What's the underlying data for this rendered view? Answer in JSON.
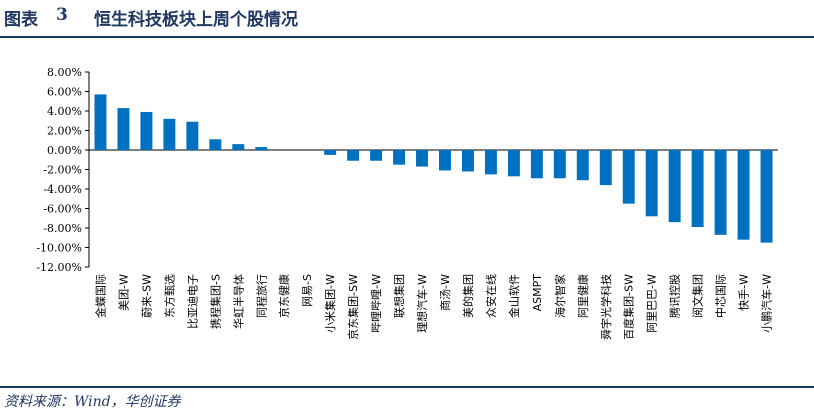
{
  "header": {
    "label": "图表",
    "number": "3",
    "title": "恒生科技板块上周个股情况"
  },
  "source": "资料来源：Wind，华创证券",
  "colors": {
    "bar": "#0070c0",
    "rule": "#1f3864",
    "axis": "#000000"
  },
  "chart_data": {
    "type": "bar",
    "title": "",
    "xlabel": "",
    "ylabel": "",
    "ylim": [
      -12,
      8
    ],
    "yticks": [
      8,
      6,
      4,
      2,
      0,
      -2,
      -4,
      -6,
      -8,
      -10,
      -12
    ],
    "ytick_labels": [
      "8.00%",
      "6.00%",
      "4.00%",
      "2.00%",
      "0.00%",
      "-2.00%",
      "-4.00%",
      "-6.00%",
      "-8.00%",
      "-10.00%",
      "-12.00%"
    ],
    "grid": false,
    "categories": [
      "金蝶国际",
      "美团-W",
      "蔚来-SW",
      "东方甄选",
      "比亚迪电子",
      "携程集团-S",
      "华虹半导体",
      "同程旅行",
      "京东健康",
      "网易-S",
      "小米集团-W",
      "京东集团-SW",
      "哔哩哔哩-W",
      "联想集团",
      "理想汽车-W",
      "商汤-W",
      "美的集团",
      "众安在线",
      "金山软件",
      "ASMPT",
      "海尔智家",
      "阿里健康",
      "舜宇光学科技",
      "百度集团-SW",
      "阿里巴巴-W",
      "腾讯控股",
      "阅文集团",
      "中芯国际",
      "快手-W",
      "小鹏汽车-W"
    ],
    "values": [
      5.7,
      4.3,
      3.9,
      3.2,
      2.9,
      1.1,
      0.6,
      0.3,
      0.0,
      0.0,
      -0.5,
      -1.1,
      -1.1,
      -1.5,
      -1.7,
      -2.1,
      -2.2,
      -2.5,
      -2.7,
      -2.9,
      -2.9,
      -3.1,
      -3.6,
      -5.5,
      -6.8,
      -7.4,
      -7.9,
      -8.7,
      -9.2,
      -9.5
    ]
  }
}
